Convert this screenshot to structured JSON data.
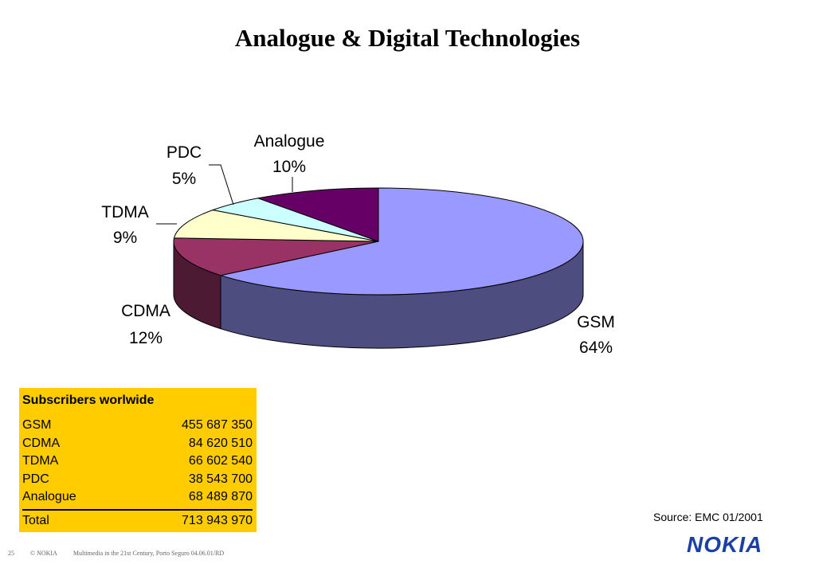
{
  "title": "Analogue & Digital Technologies",
  "chart_data": {
    "type": "pie",
    "title": "",
    "slices": [
      {
        "name": "GSM",
        "value": 64,
        "label": "64%",
        "color": "#9999ff"
      },
      {
        "name": "CDMA",
        "value": 12,
        "label": "12%",
        "color": "#993366"
      },
      {
        "name": "TDMA",
        "value": 9,
        "label": "9%",
        "color": "#ffffcc"
      },
      {
        "name": "PDC",
        "value": 5,
        "label": "5%",
        "color": "#ccffff"
      },
      {
        "name": "Analogue",
        "value": 10,
        "label": "10%",
        "color": "#660066"
      }
    ]
  },
  "table": {
    "header": "Subscribers worlwide",
    "rows": [
      {
        "name": "GSM",
        "value": "455 687 350"
      },
      {
        "name": "CDMA",
        "value": "84 620 510"
      },
      {
        "name": "TDMA",
        "value": "66 602 540"
      },
      {
        "name": "PDC",
        "value": "38 543 700"
      },
      {
        "name": "Analogue",
        "value": "68 489 870"
      }
    ],
    "total_label": "Total",
    "total_value": "713 943 970"
  },
  "source": "Source: EMC 01/2001",
  "footer": {
    "page": "25",
    "copyright": "© NOKIA",
    "text": "Multimedia in the 21st Century, Porto Seguro 04.06.01/RD"
  },
  "logo": "NOKIA",
  "colors": {
    "table_bg": "#ffcc00",
    "logo": "#1a3fa6"
  }
}
